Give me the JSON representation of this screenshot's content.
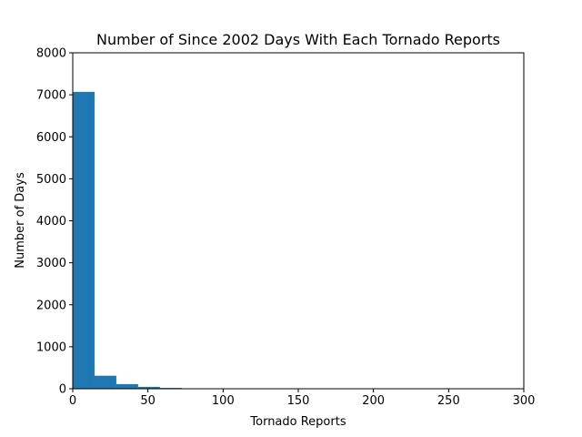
{
  "chart_data": {
    "type": "bar",
    "title": "Number of Since 2002 Days With Each Tornado Reports",
    "xlabel": "Tornado Reports",
    "ylabel": "Number of Days",
    "xlim": [
      0,
      300
    ],
    "ylim": [
      0,
      8000
    ],
    "xticks": [
      0,
      50,
      100,
      150,
      200,
      250,
      300
    ],
    "yticks": [
      0,
      1000,
      2000,
      3000,
      4000,
      5000,
      6000,
      7000,
      8000
    ],
    "bin_width": 14.5,
    "bins": [
      {
        "x0": 0,
        "x1": 14.5,
        "value": 7070
      },
      {
        "x0": 14.5,
        "x1": 29,
        "value": 310
      },
      {
        "x0": 29,
        "x1": 43.5,
        "value": 110
      },
      {
        "x0": 43.5,
        "x1": 58,
        "value": 45
      },
      {
        "x0": 58,
        "x1": 72.5,
        "value": 20
      },
      {
        "x0": 72.5,
        "x1": 87,
        "value": 8
      },
      {
        "x0": 87,
        "x1": 101.5,
        "value": 5
      },
      {
        "x0": 101.5,
        "x1": 116,
        "value": 3
      },
      {
        "x0": 116,
        "x1": 130.5,
        "value": 2
      },
      {
        "x0": 130.5,
        "x1": 145,
        "value": 1
      },
      {
        "x0": 145,
        "x1": 159.5,
        "value": 1
      },
      {
        "x0": 159.5,
        "x1": 174,
        "value": 1
      },
      {
        "x0": 174,
        "x1": 188.5,
        "value": 0
      },
      {
        "x0": 188.5,
        "x1": 203,
        "value": 0
      },
      {
        "x0": 203,
        "x1": 217.5,
        "value": 0
      },
      {
        "x0": 217.5,
        "x1": 232,
        "value": 0
      },
      {
        "x0": 232,
        "x1": 246.5,
        "value": 0
      },
      {
        "x0": 246.5,
        "x1": 261,
        "value": 0
      },
      {
        "x0": 261,
        "x1": 275.5,
        "value": 0
      },
      {
        "x0": 275.5,
        "x1": 290,
        "value": 1
      }
    ],
    "bar_color": "#1f77b4",
    "grid": false,
    "legend": "none"
  }
}
